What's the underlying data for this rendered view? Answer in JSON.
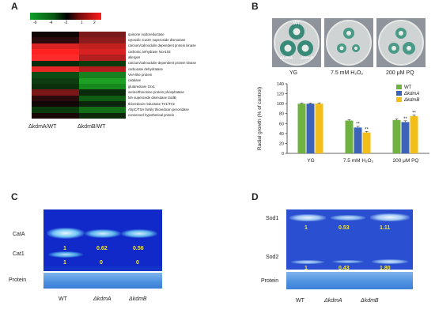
{
  "panels": {
    "a": "A",
    "b": "B",
    "c": "C",
    "d": "D"
  },
  "panel_a": {
    "scale_ticks": [
      "-6",
      "-4",
      "-2",
      "1",
      "2"
    ],
    "columns": [
      "ΔkdmA/WT",
      "ΔkdmB/WT"
    ],
    "rows": [
      "quinone oxidoreductase",
      "cytosolic Cu/Zn superoxide dismutase",
      "calcium/calmodulin dependent protein kinase",
      "carbonic anhydrase Nce103",
      "allergen",
      "calcium/calmodulin-dependent protein kinase",
      "carbonate dehydratase",
      "VeA-like protein",
      "catalase",
      "glutaredoxin Grx1",
      "serine/threonine protein phosphatase",
      "Mn superoxide dismutase SodB",
      "thioredoxin reductase Trr1/Trr2",
      "AhpC/TSA family thioredoxin peroxidase",
      "conserved hypothetical protein"
    ],
    "colors": [
      [
        "#110606",
        "#7a1a1a"
      ],
      [
        "#2b0b0b",
        "#8c1c1c"
      ],
      [
        "#d92323",
        "#c21f1f"
      ],
      [
        "#ff2222",
        "#d82222"
      ],
      [
        "#ff2a2a",
        "#b31e1e"
      ],
      [
        "#0b2a0b",
        "#0d3a0d"
      ],
      [
        "#e82626",
        "#b41d1d"
      ],
      [
        "#0d4d14",
        "#17801f"
      ],
      [
        "#0d3d10",
        "#1da023"
      ],
      [
        "#0a300c",
        "#17881b"
      ],
      [
        "#7a1616",
        "#0a2b0a"
      ],
      [
        "#2a0a0a",
        "#0f5c12"
      ],
      [
        "#120606",
        "#0b240b"
      ],
      [
        "#0b3b0d",
        "#146e18"
      ],
      [
        "#1a0707",
        "#0b280b"
      ]
    ]
  },
  "panel_b": {
    "photo_labels": [
      "WT",
      "ΔkdmA",
      "ΔkdmB"
    ],
    "conditions": [
      "YG",
      "7.5 mM H₂O₂",
      "200 μM PQ"
    ],
    "significance": "**"
  },
  "chart_data": {
    "type": "bar",
    "ylabel": "Radial growth (% of control)",
    "ylim": [
      0,
      140
    ],
    "yticks": [
      0,
      20,
      40,
      60,
      80,
      100,
      120,
      140
    ],
    "categories": [
      "YG",
      "7.5 mM H₂O₂",
      "200 μM PQ"
    ],
    "series": [
      {
        "name": "WT",
        "color": "#6fb23f",
        "values": [
          100,
          66,
          67
        ]
      },
      {
        "name": "ΔkdmA",
        "color": "#3d63b9",
        "values": [
          100,
          52,
          63
        ]
      },
      {
        "name": "ΔkdmB",
        "color": "#f2be17",
        "values": [
          100,
          42,
          75
        ]
      }
    ],
    "errors": [
      [
        1.5,
        2,
        2
      ],
      [
        1.5,
        2.5,
        2.5
      ],
      [
        1.5,
        2,
        2
      ]
    ],
    "starred": [
      [
        false,
        false,
        false
      ],
      [
        false,
        true,
        true
      ],
      [
        false,
        true,
        true
      ]
    ],
    "legend_position": "top-right"
  },
  "panel_c": {
    "bands": [
      "CatA",
      "Cat1"
    ],
    "row_catA": [
      "1",
      "0.62",
      "0.56"
    ],
    "row_cat1": [
      "1",
      "0",
      "0"
    ],
    "protein": "Protein",
    "lanes": [
      "WT",
      "ΔkdmA",
      "ΔkdmB"
    ]
  },
  "panel_d": {
    "bands": [
      "Sod1",
      "Sod2"
    ],
    "row_sod1": [
      "1",
      "0.53",
      "1.11"
    ],
    "row_sod2": [
      "1",
      "0.43",
      "1.80"
    ],
    "protein": "Protein",
    "lanes": [
      "WT",
      "ΔkdmA",
      "ΔkdmB"
    ]
  }
}
